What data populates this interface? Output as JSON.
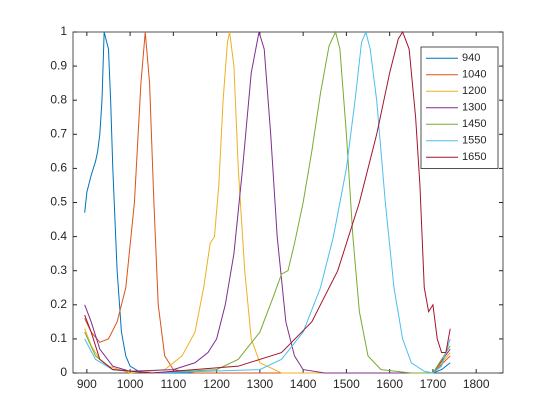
{
  "chart_data": {
    "type": "line",
    "xlim": [
      868,
      1862
    ],
    "ylim": [
      0,
      1
    ],
    "xticks": [
      900,
      1000,
      1100,
      1200,
      1300,
      1400,
      1500,
      1600,
      1700,
      1800
    ],
    "yticks": [
      0,
      0.1,
      0.2,
      0.3,
      0.4,
      0.5,
      0.6,
      0.7,
      0.8,
      0.9,
      1
    ],
    "legend": "northeast",
    "series": [
      {
        "name": "940",
        "color": "#0072BD",
        "x": [
          895,
          900,
          910,
          920,
          925,
          930,
          935,
          940,
          950,
          955,
          960,
          970,
          980,
          990,
          1000,
          1020,
          1050,
          1700,
          1720,
          1740
        ],
        "values": [
          0.47,
          0.53,
          0.58,
          0.62,
          0.65,
          0.7,
          0.8,
          1.0,
          0.95,
          0.8,
          0.6,
          0.3,
          0.12,
          0.05,
          0.02,
          0.005,
          0,
          0,
          0.01,
          0.03
        ]
      },
      {
        "name": "1040",
        "color": "#D95319",
        "x": [
          895,
          910,
          930,
          950,
          970,
          990,
          1010,
          1025,
          1035,
          1045,
          1055,
          1065,
          1080,
          1100,
          1150,
          1700,
          1740
        ],
        "values": [
          0.16,
          0.12,
          0.09,
          0.1,
          0.15,
          0.25,
          0.5,
          0.85,
          1.0,
          0.85,
          0.5,
          0.2,
          0.05,
          0.01,
          0,
          0,
          0.05
        ]
      },
      {
        "name": "1200",
        "color": "#EDB120",
        "x": [
          895,
          910,
          930,
          950,
          1000,
          1080,
          1120,
          1150,
          1170,
          1185,
          1195,
          1205,
          1215,
          1225,
          1230,
          1240,
          1250,
          1265,
          1280,
          1300,
          1350,
          1700,
          1740
        ],
        "values": [
          0.13,
          0.08,
          0.04,
          0.02,
          0,
          0.01,
          0.05,
          0.12,
          0.25,
          0.38,
          0.4,
          0.55,
          0.8,
          0.97,
          1.0,
          0.9,
          0.6,
          0.3,
          0.1,
          0.03,
          0,
          0,
          0.06
        ]
      },
      {
        "name": "1300",
        "color": "#7E2F8E",
        "x": [
          895,
          910,
          930,
          960,
          1000,
          1100,
          1150,
          1180,
          1200,
          1220,
          1240,
          1260,
          1280,
          1298,
          1310,
          1325,
          1340,
          1360,
          1380,
          1400,
          1450,
          1700,
          1740
        ],
        "values": [
          0.2,
          0.15,
          0.07,
          0.02,
          0.005,
          0.01,
          0.03,
          0.06,
          0.1,
          0.2,
          0.35,
          0.6,
          0.88,
          1.0,
          0.95,
          0.7,
          0.4,
          0.15,
          0.05,
          0.01,
          0,
          0,
          0.07
        ]
      },
      {
        "name": "1450",
        "color": "#77AC30",
        "x": [
          895,
          920,
          960,
          1050,
          1200,
          1250,
          1300,
          1330,
          1350,
          1365,
          1380,
          1400,
          1420,
          1440,
          1460,
          1475,
          1485,
          1500,
          1515,
          1530,
          1550,
          1580,
          1650,
          1700,
          1740
        ],
        "values": [
          0.12,
          0.05,
          0.01,
          0,
          0.01,
          0.04,
          0.12,
          0.22,
          0.29,
          0.3,
          0.38,
          0.5,
          0.65,
          0.82,
          0.96,
          1.0,
          0.95,
          0.7,
          0.4,
          0.18,
          0.05,
          0.01,
          0,
          0,
          0.08
        ]
      },
      {
        "name": "1550",
        "color": "#4DBEEE",
        "x": [
          895,
          920,
          960,
          1050,
          1300,
          1350,
          1400,
          1440,
          1470,
          1500,
          1520,
          1535,
          1545,
          1555,
          1570,
          1590,
          1610,
          1630,
          1650,
          1680,
          1700,
          1720,
          1740
        ],
        "values": [
          0.1,
          0.04,
          0.01,
          0,
          0.01,
          0.04,
          0.12,
          0.25,
          0.4,
          0.6,
          0.8,
          0.97,
          1.0,
          0.95,
          0.8,
          0.5,
          0.25,
          0.1,
          0.03,
          0.005,
          0,
          0.02,
          0.1
        ]
      },
      {
        "name": "1650",
        "color": "#A2142F",
        "x": [
          895,
          910,
          930,
          960,
          1050,
          1250,
          1350,
          1420,
          1480,
          1530,
          1570,
          1600,
          1620,
          1630,
          1645,
          1660,
          1670,
          1680,
          1690,
          1700,
          1710,
          1720,
          1730,
          1740
        ],
        "values": [
          0.17,
          0.12,
          0.04,
          0.01,
          0,
          0.02,
          0.06,
          0.15,
          0.3,
          0.5,
          0.7,
          0.88,
          0.98,
          1.0,
          0.95,
          0.75,
          0.55,
          0.25,
          0.18,
          0.2,
          0.1,
          0.06,
          0.06,
          0.13
        ]
      }
    ]
  }
}
